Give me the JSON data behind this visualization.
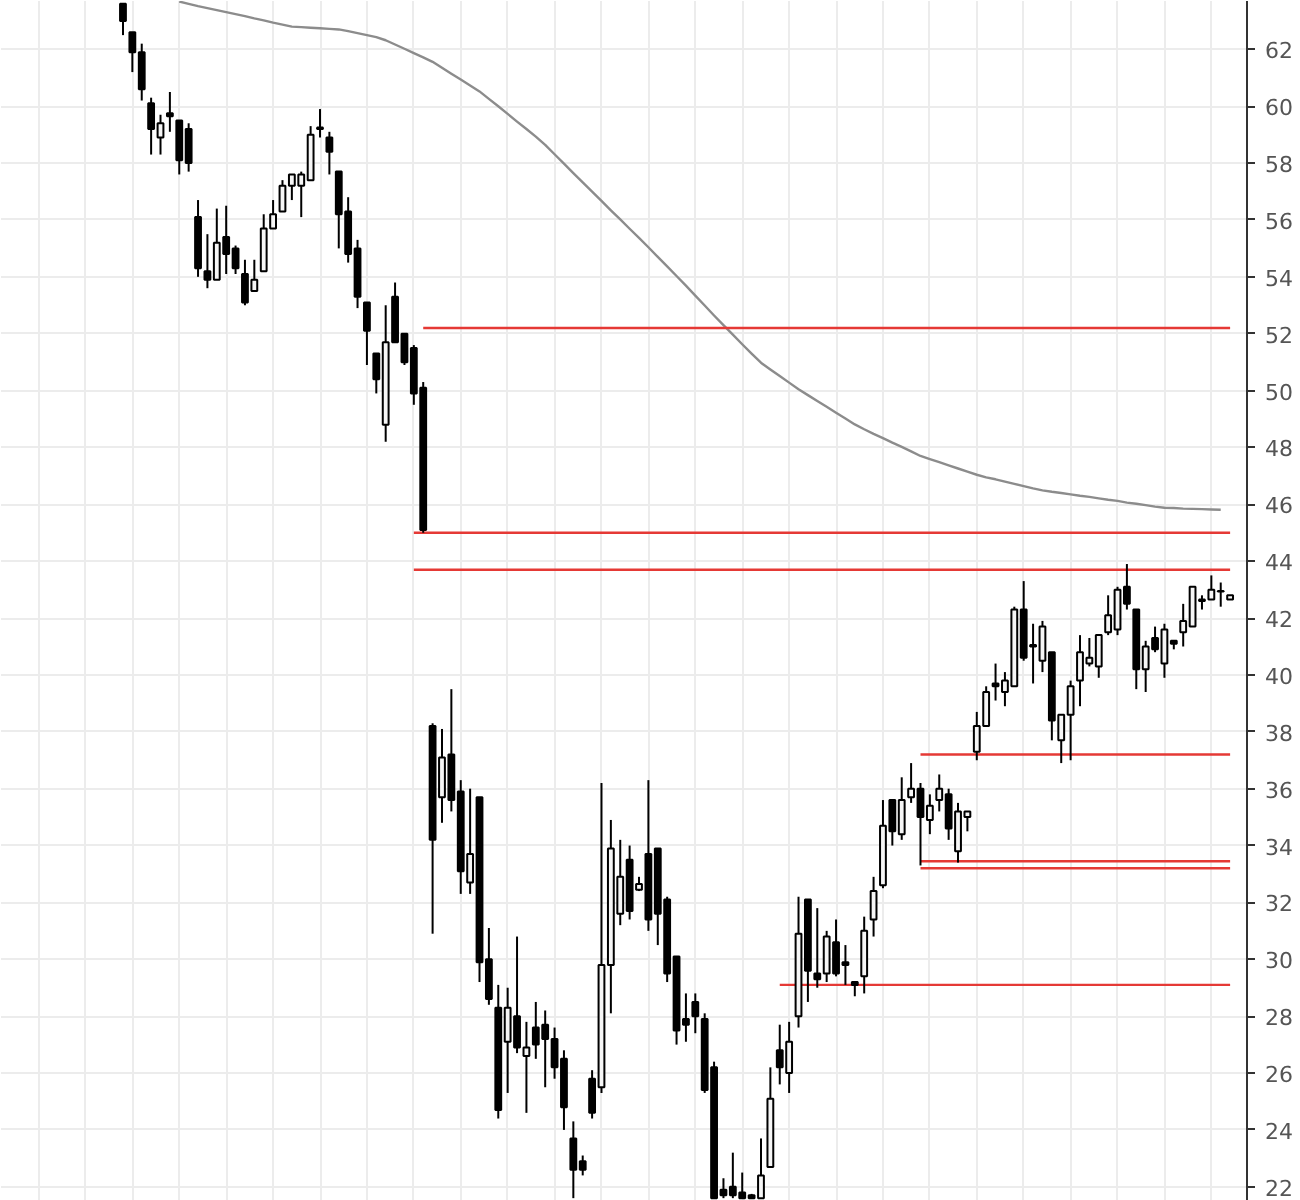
{
  "chart_data": {
    "type": "candlestick",
    "categories": [
      null,
      null,
      null,
      null,
      null,
      null,
      null,
      null,
      null,
      null,
      null,
      null,
      null,
      null,
      null,
      null,
      null,
      null,
      null,
      null,
      null,
      null,
      null,
      null,
      null,
      null,
      null,
      null,
      null,
      null,
      null,
      null,
      null,
      null,
      null,
      null,
      null,
      null,
      null,
      null,
      null,
      null,
      null,
      null,
      null,
      null,
      null,
      null,
      null,
      null,
      null,
      null,
      null,
      null,
      null,
      null,
      null,
      null,
      null,
      null,
      null,
      null,
      null,
      null,
      null,
      null,
      null,
      null,
      null,
      null,
      null,
      null,
      null,
      null,
      null,
      null,
      null,
      null,
      null,
      null,
      null,
      null,
      null,
      null,
      null,
      null,
      null,
      null,
      null,
      null,
      null,
      null,
      null,
      null,
      null,
      null,
      null,
      null,
      null,
      null,
      null,
      null,
      null,
      null,
      null,
      null,
      null,
      null,
      null,
      null,
      null,
      null,
      null,
      null,
      null,
      null,
      null,
      null,
      null
    ],
    "ylim": [
      21.5,
      63.7
    ],
    "yticks": [
      22,
      24,
      26,
      28,
      30,
      32,
      34,
      36,
      38,
      40,
      42,
      44,
      46,
      48,
      50,
      52,
      54,
      56,
      58,
      60,
      62
    ],
    "tick_labels": "y",
    "grid": true,
    "color": "#000000",
    "ohlc": [
      [
        63.6,
        63.6,
        62.5,
        63.0
      ],
      [
        62.6,
        62.6,
        61.2,
        61.9
      ],
      [
        61.9,
        62.2,
        60.2,
        60.6
      ],
      [
        60.1,
        60.3,
        58.3,
        59.2
      ],
      [
        58.9,
        59.7,
        58.3,
        59.4
      ],
      [
        59.75,
        60.5,
        59.1,
        59.65
      ],
      [
        59.5,
        59.5,
        57.6,
        58.1
      ],
      [
        59.2,
        59.4,
        57.7,
        58.0
      ],
      [
        56.1,
        56.7,
        54.0,
        54.3
      ],
      [
        54.2,
        55.5,
        53.6,
        53.9
      ],
      [
        53.9,
        56.4,
        53.9,
        55.2
      ],
      [
        55.4,
        56.5,
        54.1,
        54.8
      ],
      [
        55.0,
        55.1,
        54.1,
        54.3
      ],
      [
        54.1,
        54.6,
        53.0,
        53.1
      ],
      [
        53.5,
        54.6,
        53.5,
        53.9
      ],
      [
        54.2,
        56.2,
        54.2,
        55.7
      ],
      [
        55.7,
        56.7,
        55.7,
        56.2
      ],
      [
        56.3,
        57.4,
        56.3,
        57.2
      ],
      [
        57.2,
        57.6,
        56.7,
        57.6
      ],
      [
        57.2,
        57.7,
        56.1,
        57.6
      ],
      [
        57.4,
        59.3,
        57.4,
        59.0
      ],
      [
        59.25,
        59.9,
        58.9,
        59.2
      ],
      [
        58.9,
        59.1,
        57.6,
        58.4
      ],
      [
        57.7,
        57.7,
        55.0,
        56.2
      ],
      [
        56.3,
        56.8,
        54.5,
        54.8
      ],
      [
        55.0,
        55.3,
        52.9,
        53.3
      ],
      [
        53.1,
        53.1,
        50.9,
        52.1
      ],
      [
        51.3,
        51.3,
        49.9,
        50.4
      ],
      [
        48.8,
        53.0,
        48.2,
        51.7
      ],
      [
        53.3,
        53.8,
        51.7,
        51.7
      ],
      [
        52.0,
        52.0,
        50.9,
        51.0
      ],
      [
        51.5,
        51.6,
        49.5,
        49.9
      ],
      [
        50.1,
        50.3,
        45.0,
        45.1
      ],
      [
        38.2,
        38.3,
        30.9,
        34.2
      ],
      [
        35.7,
        38.1,
        34.8,
        37.1
      ],
      [
        37.2,
        39.5,
        35.2,
        35.6
      ],
      [
        35.9,
        36.3,
        32.3,
        33.1
      ],
      [
        32.7,
        36.0,
        32.3,
        33.7
      ],
      [
        35.7,
        35.7,
        29.2,
        29.9
      ],
      [
        30.0,
        31.1,
        28.4,
        28.6
      ],
      [
        28.3,
        29.1,
        24.4,
        24.7
      ],
      [
        27.1,
        29.0,
        25.3,
        28.3
      ],
      [
        28.0,
        30.8,
        26.7,
        26.9
      ],
      [
        26.6,
        27.8,
        24.6,
        26.9
      ],
      [
        27.6,
        28.5,
        26.5,
        27.0
      ],
      [
        27.7,
        28.2,
        25.5,
        27.2
      ],
      [
        27.2,
        27.6,
        25.8,
        26.2
      ],
      [
        26.5,
        26.8,
        24.0,
        24.8
      ],
      [
        23.7,
        24.3,
        21.6,
        22.6
      ],
      [
        22.9,
        23.1,
        22.4,
        22.6
      ],
      [
        25.8,
        26.1,
        24.4,
        24.6
      ],
      [
        25.5,
        36.2,
        25.3,
        29.8
      ],
      [
        29.8,
        34.9,
        28.1,
        33.9
      ],
      [
        31.6,
        34.2,
        31.2,
        32.9
      ],
      [
        33.5,
        34.0,
        31.4,
        31.7
      ],
      [
        32.45,
        32.9,
        32.4,
        32.65
      ],
      [
        33.7,
        36.3,
        31.0,
        31.4
      ],
      [
        33.9,
        33.9,
        30.5,
        31.6
      ],
      [
        32.1,
        32.2,
        29.2,
        29.5
      ],
      [
        30.1,
        30.1,
        27.0,
        27.5
      ],
      [
        27.9,
        28.8,
        27.1,
        27.7
      ],
      [
        28.5,
        28.8,
        27.4,
        28.0
      ],
      [
        27.9,
        28.1,
        25.3,
        25.4
      ],
      [
        26.2,
        26.4,
        21.6,
        21.6
      ],
      [
        21.9,
        22.3,
        21.6,
        21.7
      ],
      [
        22.0,
        23.2,
        21.6,
        21.7
      ],
      [
        21.8,
        22.5,
        21.6,
        21.6
      ],
      [
        21.7,
        21.75,
        21.6,
        21.6
      ],
      [
        21.6,
        23.7,
        21.6,
        22.4
      ],
      [
        22.7,
        26.2,
        22.7,
        25.1
      ],
      [
        26.8,
        27.7,
        25.6,
        26.2
      ],
      [
        26.0,
        27.8,
        25.3,
        27.1
      ],
      [
        28.0,
        32.2,
        27.6,
        30.9
      ],
      [
        32.1,
        32.1,
        28.5,
        29.6
      ],
      [
        29.5,
        31.8,
        29.0,
        29.3
      ],
      [
        29.5,
        31.0,
        29.2,
        30.8
      ],
      [
        30.6,
        31.4,
        29.4,
        29.5
      ],
      [
        29.9,
        30.5,
        29.1,
        29.8
      ],
      [
        29.2,
        29.2,
        28.7,
        29.1
      ],
      [
        29.4,
        31.5,
        28.8,
        31.0
      ],
      [
        31.4,
        32.9,
        30.8,
        32.4
      ],
      [
        32.6,
        35.6,
        32.5,
        34.7
      ],
      [
        35.6,
        35.6,
        34.0,
        34.5
      ],
      [
        34.4,
        36.4,
        34.2,
        35.6
      ],
      [
        35.7,
        36.9,
        35.5,
        36.0
      ],
      [
        36.0,
        36.2,
        33.3,
        35.0
      ],
      [
        34.9,
        35.8,
        34.4,
        35.4
      ],
      [
        35.6,
        36.5,
        35.2,
        36.0
      ],
      [
        35.8,
        36.0,
        34.2,
        34.6
      ],
      [
        33.8,
        35.5,
        33.4,
        35.2
      ],
      [
        35.0,
        35.2,
        34.5,
        35.2
      ],
      [
        37.3,
        38.7,
        37.0,
        38.2
      ],
      [
        38.2,
        39.6,
        38.2,
        39.4
      ],
      [
        39.7,
        40.4,
        39.1,
        39.6
      ],
      [
        39.4,
        40.1,
        38.9,
        39.8
      ],
      [
        39.6,
        42.4,
        39.6,
        42.3
      ],
      [
        42.3,
        43.3,
        40.5,
        40.6
      ],
      [
        41.05,
        41.8,
        39.7,
        41.0
      ],
      [
        40.5,
        41.9,
        40.1,
        41.7
      ],
      [
        40.8,
        40.8,
        37.7,
        38.4
      ],
      [
        37.7,
        38.6,
        36.9,
        38.6
      ],
      [
        38.6,
        39.8,
        37.0,
        39.6
      ],
      [
        39.8,
        41.4,
        38.9,
        40.8
      ],
      [
        40.4,
        41.3,
        40.3,
        40.6
      ],
      [
        40.3,
        41.4,
        39.9,
        41.4
      ],
      [
        41.5,
        42.8,
        41.4,
        42.1
      ],
      [
        41.6,
        43.1,
        41.4,
        43.0
      ],
      [
        43.1,
        43.9,
        42.3,
        42.5
      ],
      [
        42.3,
        42.3,
        39.5,
        40.2
      ],
      [
        40.2,
        41.2,
        39.4,
        41.0
      ],
      [
        41.3,
        41.7,
        40.8,
        40.9
      ],
      [
        40.4,
        41.8,
        39.9,
        41.6
      ],
      [
        41.2,
        41.2,
        40.9,
        41.1
      ],
      [
        41.5,
        42.5,
        41.0,
        41.9
      ],
      [
        41.7,
        43.1,
        41.7,
        43.1
      ],
      [
        42.65,
        42.8,
        42.3,
        42.6
      ],
      [
        42.65,
        43.5,
        42.65,
        43.0
      ],
      [
        42.95,
        43.25,
        42.4,
        42.93
      ],
      [
        42.65,
        42.8,
        42.65,
        42.8
      ]
    ],
    "series": [
      {
        "type": "line",
        "color": "#8c8c8c",
        "values": [
          null,
          null,
          null,
          null,
          null,
          null,
          63.68,
          63.6,
          63.52,
          63.45,
          63.38,
          63.31,
          63.24,
          63.17,
          63.09,
          63.02,
          62.94,
          62.87,
          62.8,
          62.78,
          62.76,
          62.74,
          62.72,
          62.7,
          62.64,
          62.57,
          62.5,
          62.43,
          62.32,
          62.17,
          62.02,
          61.87,
          61.72,
          61.56,
          61.35,
          61.14,
          60.94,
          60.73,
          60.52,
          60.26,
          60.0,
          59.73,
          59.46,
          59.2,
          58.93,
          58.64,
          58.31,
          57.98,
          57.65,
          57.32,
          57.0,
          56.67,
          56.34,
          56.02,
          55.69,
          55.37,
          55.04,
          54.7,
          54.37,
          54.03,
          53.69,
          53.34,
          52.99,
          52.64,
          52.3,
          51.97,
          51.63,
          51.3,
          50.98,
          50.74,
          50.51,
          50.28,
          50.05,
          49.84,
          49.63,
          49.43,
          49.22,
          49.02,
          48.81,
          48.64,
          48.48,
          48.33,
          48.17,
          48.02,
          47.86,
          47.7,
          47.59,
          47.48,
          47.37,
          47.26,
          47.15,
          47.04,
          46.95,
          46.88,
          46.8,
          46.72,
          46.64,
          46.56,
          46.49,
          46.44,
          46.4,
          46.35,
          46.3,
          46.26,
          46.21,
          46.16,
          46.12,
          46.06,
          46.02,
          45.97,
          45.92,
          45.88,
          45.87,
          45.85,
          45.84,
          45.83,
          45.82,
          45.81,
          null
        ]
      },
      {
        "type": "line",
        "color": "#e53935",
        "values": [
          null,
          null,
          null,
          null,
          null,
          null,
          null,
          null,
          null,
          null,
          null,
          null,
          null,
          null,
          null,
          null,
          null,
          null,
          null,
          null,
          null,
          null,
          null,
          null,
          null,
          null,
          null,
          null,
          null,
          null,
          null,
          null,
          52.2,
          52.2,
          52.2,
          52.2,
          52.2,
          52.2,
          52.2,
          52.2,
          52.2,
          52.2,
          52.2,
          52.2,
          52.2,
          52.2,
          52.2,
          52.2,
          52.2,
          52.2,
          52.2,
          52.2,
          52.2,
          52.2,
          52.2,
          52.2,
          52.2,
          52.2,
          52.2,
          52.2,
          52.2,
          52.2,
          52.2,
          52.2,
          52.2,
          52.2,
          52.2,
          52.2,
          52.2,
          52.2,
          52.2,
          52.2,
          52.2,
          52.2,
          52.2,
          52.2,
          52.2,
          52.2,
          52.2,
          52.2,
          52.2,
          52.2,
          52.2,
          52.2,
          52.2,
          52.2,
          52.2,
          52.2,
          52.2,
          52.2,
          52.2,
          52.2,
          52.2,
          52.2,
          52.2,
          52.2,
          52.2,
          52.2,
          52.2,
          52.2,
          52.2,
          52.2,
          52.2,
          52.2,
          52.2,
          52.2,
          52.2,
          52.2,
          52.2,
          52.2,
          52.2,
          52.2,
          52.2,
          52.2,
          52.2,
          52.2,
          52.2,
          52.2,
          52.2
        ]
      },
      {
        "type": "line",
        "color": "#e53935",
        "values": [
          null,
          null,
          null,
          null,
          null,
          null,
          null,
          null,
          null,
          null,
          null,
          null,
          null,
          null,
          null,
          null,
          null,
          null,
          null,
          null,
          null,
          null,
          null,
          null,
          null,
          null,
          null,
          null,
          null,
          null,
          null,
          45.0,
          45.0,
          45.0,
          45.0,
          45.0,
          45.0,
          45.0,
          45.0,
          45.0,
          45.0,
          45.0,
          45.0,
          45.0,
          45.0,
          45.0,
          45.0,
          45.0,
          45.0,
          45.0,
          45.0,
          45.0,
          45.0,
          45.0,
          45.0,
          45.0,
          45.0,
          45.0,
          45.0,
          45.0,
          45.0,
          45.0,
          45.0,
          45.0,
          45.0,
          45.0,
          45.0,
          45.0,
          45.0,
          45.0,
          45.0,
          45.0,
          45.0,
          45.0,
          45.0,
          45.0,
          45.0,
          45.0,
          45.0,
          45.0,
          45.0,
          45.0,
          45.0,
          45.0,
          45.0,
          45.0,
          45.0,
          45.0,
          45.0,
          45.0,
          45.0,
          45.0,
          45.0,
          45.0,
          45.0,
          45.0,
          45.0,
          45.0,
          45.0,
          45.0,
          45.0,
          45.0,
          45.0,
          45.0,
          45.0,
          45.0,
          45.0,
          45.0,
          45.0,
          45.0,
          45.0,
          45.0,
          45.0,
          45.0,
          45.0,
          45.0,
          45.0,
          45.0,
          45.0
        ]
      },
      {
        "type": "line",
        "color": "#e53935",
        "values": [
          null,
          null,
          null,
          null,
          null,
          null,
          null,
          null,
          null,
          null,
          null,
          null,
          null,
          null,
          null,
          null,
          null,
          null,
          null,
          null,
          null,
          null,
          null,
          null,
          null,
          null,
          null,
          null,
          null,
          null,
          null,
          43.7,
          43.7,
          43.7,
          43.7,
          43.7,
          43.7,
          43.7,
          43.7,
          43.7,
          43.7,
          43.7,
          43.7,
          43.7,
          43.7,
          43.7,
          43.7,
          43.7,
          43.7,
          43.7,
          43.7,
          43.7,
          43.7,
          43.7,
          43.7,
          43.7,
          43.7,
          43.7,
          43.7,
          43.7,
          43.7,
          43.7,
          43.7,
          43.7,
          43.7,
          43.7,
          43.7,
          43.7,
          43.7,
          43.7,
          43.7,
          43.7,
          43.7,
          43.7,
          43.7,
          43.7,
          43.7,
          43.7,
          43.7,
          43.7,
          43.7,
          43.7,
          43.7,
          43.7,
          43.7,
          43.7,
          43.7,
          43.7,
          43.7,
          43.7,
          43.7,
          43.7,
          43.7,
          43.7,
          43.7,
          43.7,
          43.7,
          43.7,
          43.7,
          43.7,
          43.7,
          43.7,
          43.7,
          43.7,
          43.7,
          43.7,
          43.7,
          43.7,
          43.7,
          43.7,
          43.7,
          43.7,
          43.7,
          43.7,
          43.7,
          43.7,
          43.7,
          43.7,
          43.7
        ]
      },
      {
        "type": "line",
        "color": "#e53935",
        "values": [
          null,
          null,
          null,
          null,
          null,
          null,
          null,
          null,
          null,
          null,
          null,
          null,
          null,
          null,
          null,
          null,
          null,
          null,
          null,
          null,
          null,
          null,
          null,
          null,
          null,
          null,
          null,
          null,
          null,
          null,
          null,
          null,
          null,
          null,
          null,
          null,
          null,
          null,
          null,
          null,
          null,
          null,
          null,
          null,
          null,
          null,
          null,
          null,
          null,
          null,
          null,
          null,
          null,
          null,
          null,
          null,
          null,
          null,
          null,
          null,
          null,
          null,
          null,
          null,
          null,
          null,
          null,
          null,
          null,
          null,
          null,
          null,
          null,
          null,
          null,
          null,
          null,
          null,
          null,
          null,
          null,
          null,
          null,
          null,
          null,
          37.2,
          37.2,
          37.2,
          37.2,
          37.2,
          37.2,
          37.2,
          37.2,
          37.2,
          37.2,
          37.2,
          37.2,
          37.2,
          37.2,
          37.2,
          37.2,
          37.2,
          37.2,
          37.2,
          37.2,
          37.2,
          37.2,
          37.2,
          37.2,
          37.2,
          37.2,
          37.2,
          37.2,
          37.2,
          37.2,
          37.2,
          37.2,
          37.2,
          37.2
        ]
      },
      {
        "type": "line",
        "color": "#e53935",
        "values": [
          null,
          null,
          null,
          null,
          null,
          null,
          null,
          null,
          null,
          null,
          null,
          null,
          null,
          null,
          null,
          null,
          null,
          null,
          null,
          null,
          null,
          null,
          null,
          null,
          null,
          null,
          null,
          null,
          null,
          null,
          null,
          null,
          null,
          null,
          null,
          null,
          null,
          null,
          null,
          null,
          null,
          null,
          null,
          null,
          null,
          null,
          null,
          null,
          null,
          null,
          null,
          null,
          null,
          null,
          null,
          null,
          null,
          null,
          null,
          null,
          null,
          null,
          null,
          null,
          null,
          null,
          null,
          null,
          null,
          null,
          null,
          null,
          null,
          null,
          null,
          null,
          null,
          null,
          null,
          null,
          null,
          null,
          null,
          null,
          null,
          33.45,
          33.45,
          33.45,
          33.45,
          33.45,
          33.45,
          33.45,
          33.45,
          33.45,
          33.45,
          33.45,
          33.45,
          33.45,
          33.45,
          33.45,
          33.45,
          33.45,
          33.45,
          33.45,
          33.45,
          33.45,
          33.45,
          33.45,
          33.45,
          33.45,
          33.45,
          33.45,
          33.45,
          33.45,
          33.45,
          33.45,
          33.45,
          33.45,
          33.45
        ]
      },
      {
        "type": "line",
        "color": "#e53935",
        "values": [
          null,
          null,
          null,
          null,
          null,
          null,
          null,
          null,
          null,
          null,
          null,
          null,
          null,
          null,
          null,
          null,
          null,
          null,
          null,
          null,
          null,
          null,
          null,
          null,
          null,
          null,
          null,
          null,
          null,
          null,
          null,
          null,
          null,
          null,
          null,
          null,
          null,
          null,
          null,
          null,
          null,
          null,
          null,
          null,
          null,
          null,
          null,
          null,
          null,
          null,
          null,
          null,
          null,
          null,
          null,
          null,
          null,
          null,
          null,
          null,
          null,
          null,
          null,
          null,
          null,
          null,
          null,
          null,
          null,
          null,
          null,
          null,
          null,
          null,
          null,
          null,
          null,
          null,
          null,
          null,
          null,
          null,
          null,
          null,
          null,
          33.2,
          33.2,
          33.2,
          33.2,
          33.2,
          33.2,
          33.2,
          33.2,
          33.2,
          33.2,
          33.2,
          33.2,
          33.2,
          33.2,
          33.2,
          33.2,
          33.2,
          33.2,
          33.2,
          33.2,
          33.2,
          33.2,
          33.2,
          33.2,
          33.2,
          33.2,
          33.2,
          33.2,
          33.2,
          33.2,
          33.2,
          33.2,
          33.2,
          33.2
        ]
      },
      {
        "type": "line",
        "color": "#e53935",
        "values": [
          null,
          null,
          null,
          null,
          null,
          null,
          null,
          null,
          null,
          null,
          null,
          null,
          null,
          null,
          null,
          null,
          null,
          null,
          null,
          null,
          null,
          null,
          null,
          null,
          null,
          null,
          null,
          null,
          null,
          null,
          null,
          null,
          null,
          null,
          null,
          null,
          null,
          null,
          null,
          null,
          null,
          null,
          null,
          null,
          null,
          null,
          null,
          null,
          null,
          null,
          null,
          null,
          null,
          null,
          null,
          null,
          null,
          null,
          null,
          null,
          null,
          null,
          null,
          null,
          null,
          null,
          null,
          null,
          null,
          null,
          29.1,
          29.1,
          29.1,
          29.1,
          29.1,
          29.1,
          29.1,
          29.1,
          29.1,
          29.1,
          29.1,
          29.1,
          29.1,
          29.1,
          29.1,
          29.1,
          29.1,
          29.1,
          29.1,
          29.1,
          29.1,
          29.1,
          29.1,
          29.1,
          29.1,
          29.1,
          29.1,
          29.1,
          29.1,
          29.1,
          29.1,
          29.1,
          29.1,
          29.1,
          29.1,
          29.1,
          29.1,
          29.1,
          29.1,
          29.1,
          29.1,
          29.1,
          29.1,
          29.1,
          29.1,
          29.1,
          29.1,
          29.1,
          29.1
        ]
      }
    ]
  }
}
